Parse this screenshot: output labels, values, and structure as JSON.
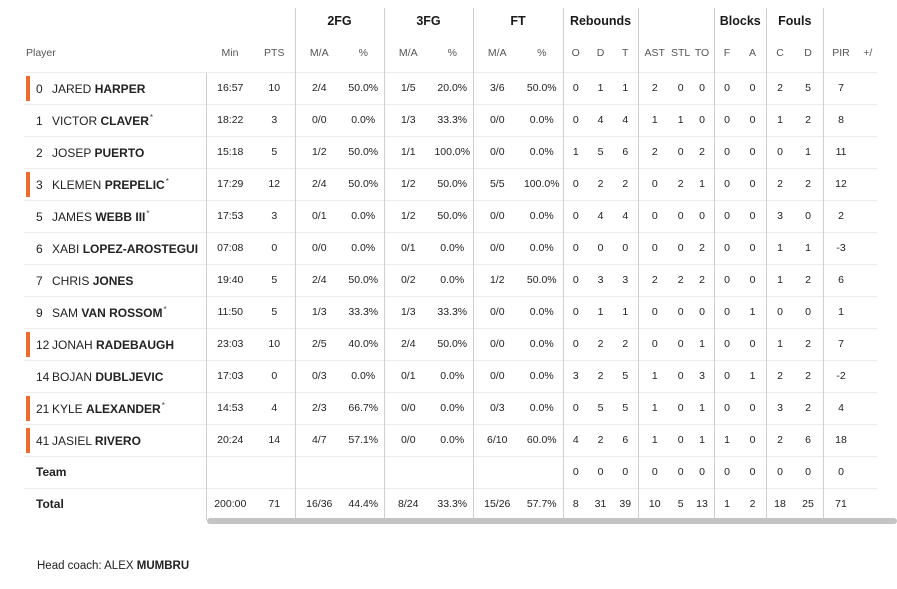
{
  "groups": {
    "fg2": "2FG",
    "fg3": "3FG",
    "ft": "FT",
    "reb": "Rebounds",
    "blk": "Blocks",
    "fouls": "Fouls"
  },
  "columns": {
    "player": "Player",
    "min": "Min",
    "pts": "PTS",
    "fg2_ma": "M/A",
    "fg2_pct": "%",
    "fg3_ma": "M/A",
    "fg3_pct": "%",
    "ft_ma": "M/A",
    "ft_pct": "%",
    "reb_o": "O",
    "reb_d": "D",
    "reb_t": "T",
    "ast": "AST",
    "stl": "STL",
    "to": "TO",
    "blk_f": "F",
    "blk_a": "A",
    "foul_c": "C",
    "foul_d": "D",
    "pir": "PIR",
    "more": "+/"
  },
  "players": [
    {
      "num": "0",
      "first": "JARED",
      "last": "HARPER",
      "star": "",
      "starter": true,
      "min": "16:57",
      "pts": "10",
      "fg2_ma": "2/4",
      "fg2_pct": "50.0%",
      "fg3_ma": "1/5",
      "fg3_pct": "20.0%",
      "ft_ma": "3/6",
      "ft_pct": "50.0%",
      "reb_o": "0",
      "reb_d": "1",
      "reb_t": "1",
      "ast": "2",
      "stl": "0",
      "to": "0",
      "blk_f": "0",
      "blk_a": "0",
      "foul_c": "2",
      "foul_d": "5",
      "pir": "7"
    },
    {
      "num": "1",
      "first": "VICTOR",
      "last": "CLAVER",
      "star": "*",
      "starter": false,
      "min": "18:22",
      "pts": "3",
      "fg2_ma": "0/0",
      "fg2_pct": "0.0%",
      "fg3_ma": "1/3",
      "fg3_pct": "33.3%",
      "ft_ma": "0/0",
      "ft_pct": "0.0%",
      "reb_o": "0",
      "reb_d": "4",
      "reb_t": "4",
      "ast": "1",
      "stl": "1",
      "to": "0",
      "blk_f": "0",
      "blk_a": "0",
      "foul_c": "1",
      "foul_d": "2",
      "pir": "8"
    },
    {
      "num": "2",
      "first": "JOSEP",
      "last": "PUERTO",
      "star": "",
      "starter": false,
      "min": "15:18",
      "pts": "5",
      "fg2_ma": "1/2",
      "fg2_pct": "50.0%",
      "fg3_ma": "1/1",
      "fg3_pct": "100.0%",
      "ft_ma": "0/0",
      "ft_pct": "0.0%",
      "reb_o": "1",
      "reb_d": "5",
      "reb_t": "6",
      "ast": "2",
      "stl": "0",
      "to": "2",
      "blk_f": "0",
      "blk_a": "0",
      "foul_c": "0",
      "foul_d": "1",
      "pir": "11"
    },
    {
      "num": "3",
      "first": "KLEMEN",
      "last": "PREPELIC",
      "star": "*",
      "starter": true,
      "min": "17:29",
      "pts": "12",
      "fg2_ma": "2/4",
      "fg2_pct": "50.0%",
      "fg3_ma": "1/2",
      "fg3_pct": "50.0%",
      "ft_ma": "5/5",
      "ft_pct": "100.0%",
      "reb_o": "0",
      "reb_d": "2",
      "reb_t": "2",
      "ast": "0",
      "stl": "2",
      "to": "1",
      "blk_f": "0",
      "blk_a": "0",
      "foul_c": "2",
      "foul_d": "2",
      "pir": "12"
    },
    {
      "num": "5",
      "first": "JAMES",
      "last": "WEBB III",
      "star": "*",
      "starter": false,
      "min": "17:53",
      "pts": "3",
      "fg2_ma": "0/1",
      "fg2_pct": "0.0%",
      "fg3_ma": "1/2",
      "fg3_pct": "50.0%",
      "ft_ma": "0/0",
      "ft_pct": "0.0%",
      "reb_o": "0",
      "reb_d": "4",
      "reb_t": "4",
      "ast": "0",
      "stl": "0",
      "to": "0",
      "blk_f": "0",
      "blk_a": "0",
      "foul_c": "3",
      "foul_d": "0",
      "pir": "2"
    },
    {
      "num": "6",
      "first": "XABI",
      "last": "LOPEZ-AROSTEGUI",
      "star": "",
      "starter": false,
      "min": "07:08",
      "pts": "0",
      "fg2_ma": "0/0",
      "fg2_pct": "0.0%",
      "fg3_ma": "0/1",
      "fg3_pct": "0.0%",
      "ft_ma": "0/0",
      "ft_pct": "0.0%",
      "reb_o": "0",
      "reb_d": "0",
      "reb_t": "0",
      "ast": "0",
      "stl": "0",
      "to": "2",
      "blk_f": "0",
      "blk_a": "0",
      "foul_c": "1",
      "foul_d": "1",
      "pir": "-3"
    },
    {
      "num": "7",
      "first": "CHRIS",
      "last": "JONES",
      "star": "",
      "starter": false,
      "min": "19:40",
      "pts": "5",
      "fg2_ma": "2/4",
      "fg2_pct": "50.0%",
      "fg3_ma": "0/2",
      "fg3_pct": "0.0%",
      "ft_ma": "1/2",
      "ft_pct": "50.0%",
      "reb_o": "0",
      "reb_d": "3",
      "reb_t": "3",
      "ast": "2",
      "stl": "2",
      "to": "2",
      "blk_f": "0",
      "blk_a": "0",
      "foul_c": "1",
      "foul_d": "2",
      "pir": "6"
    },
    {
      "num": "9",
      "first": "SAM",
      "last": "VAN ROSSOM",
      "star": "*",
      "starter": false,
      "min": "11:50",
      "pts": "5",
      "fg2_ma": "1/3",
      "fg2_pct": "33.3%",
      "fg3_ma": "1/3",
      "fg3_pct": "33.3%",
      "ft_ma": "0/0",
      "ft_pct": "0.0%",
      "reb_o": "0",
      "reb_d": "1",
      "reb_t": "1",
      "ast": "0",
      "stl": "0",
      "to": "0",
      "blk_f": "0",
      "blk_a": "1",
      "foul_c": "0",
      "foul_d": "0",
      "pir": "1"
    },
    {
      "num": "12",
      "first": "JONAH",
      "last": "RADEBAUGH",
      "star": "",
      "starter": true,
      "min": "23:03",
      "pts": "10",
      "fg2_ma": "2/5",
      "fg2_pct": "40.0%",
      "fg3_ma": "2/4",
      "fg3_pct": "50.0%",
      "ft_ma": "0/0",
      "ft_pct": "0.0%",
      "reb_o": "0",
      "reb_d": "2",
      "reb_t": "2",
      "ast": "0",
      "stl": "0",
      "to": "1",
      "blk_f": "0",
      "blk_a": "0",
      "foul_c": "1",
      "foul_d": "2",
      "pir": "7"
    },
    {
      "num": "14",
      "first": "BOJAN",
      "last": "DUBLJEVIC",
      "star": "",
      "starter": false,
      "min": "17:03",
      "pts": "0",
      "fg2_ma": "0/3",
      "fg2_pct": "0.0%",
      "fg3_ma": "0/1",
      "fg3_pct": "0.0%",
      "ft_ma": "0/0",
      "ft_pct": "0.0%",
      "reb_o": "3",
      "reb_d": "2",
      "reb_t": "5",
      "ast": "1",
      "stl": "0",
      "to": "3",
      "blk_f": "0",
      "blk_a": "1",
      "foul_c": "2",
      "foul_d": "2",
      "pir": "-2"
    },
    {
      "num": "21",
      "first": "KYLE",
      "last": "ALEXANDER",
      "star": "*",
      "starter": true,
      "min": "14:53",
      "pts": "4",
      "fg2_ma": "2/3",
      "fg2_pct": "66.7%",
      "fg3_ma": "0/0",
      "fg3_pct": "0.0%",
      "ft_ma": "0/3",
      "ft_pct": "0.0%",
      "reb_o": "0",
      "reb_d": "5",
      "reb_t": "5",
      "ast": "1",
      "stl": "0",
      "to": "1",
      "blk_f": "0",
      "blk_a": "0",
      "foul_c": "3",
      "foul_d": "2",
      "pir": "4"
    },
    {
      "num": "41",
      "first": "JASIEL",
      "last": "RIVERO",
      "star": "",
      "starter": true,
      "min": "20:24",
      "pts": "14",
      "fg2_ma": "4/7",
      "fg2_pct": "57.1%",
      "fg3_ma": "0/0",
      "fg3_pct": "0.0%",
      "ft_ma": "6/10",
      "ft_pct": "60.0%",
      "reb_o": "4",
      "reb_d": "2",
      "reb_t": "6",
      "ast": "1",
      "stl": "0",
      "to": "1",
      "blk_f": "1",
      "blk_a": "0",
      "foul_c": "2",
      "foul_d": "6",
      "pir": "18"
    }
  ],
  "team": {
    "label": "Team",
    "reb_o": "0",
    "reb_d": "0",
    "reb_t": "0",
    "ast": "0",
    "stl": "0",
    "to": "0",
    "blk_f": "0",
    "blk_a": "0",
    "foul_c": "0",
    "foul_d": "0",
    "pir": "0"
  },
  "total": {
    "label": "Total",
    "min": "200:00",
    "pts": "71",
    "fg2_ma": "16/36",
    "fg2_pct": "44.4%",
    "fg3_ma": "8/24",
    "fg3_pct": "33.3%",
    "ft_ma": "15/26",
    "ft_pct": "57.7%",
    "reb_o": "8",
    "reb_d": "31",
    "reb_t": "39",
    "ast": "10",
    "stl": "5",
    "to": "13",
    "blk_f": "1",
    "blk_a": "2",
    "foul_c": "18",
    "foul_d": "25",
    "pir": "71"
  },
  "coach": {
    "label": "Head coach:",
    "first": "ALEX",
    "last": "MUMBRU"
  },
  "colors": {
    "starter_marker": "#ef6b2b"
  }
}
